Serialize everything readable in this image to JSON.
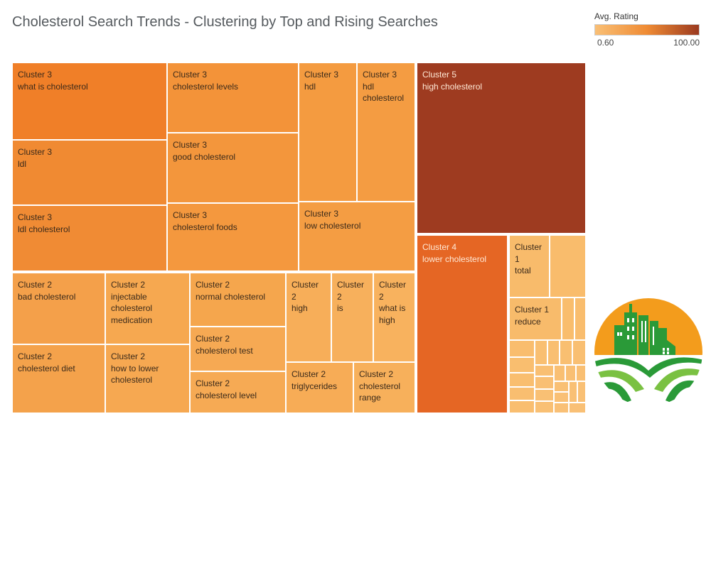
{
  "page": {
    "title": "Cholesterol Search Trends - Clustering by Top and Rising Searches"
  },
  "legend": {
    "title": "Avg. Rating",
    "min_label": "0.60",
    "max_label": "100.00",
    "low_color": "#f9bf75",
    "high_color": "#9b3a20"
  },
  "logo": {
    "icon": "city-and-farm-logo"
  },
  "chart_data": {
    "type": "treemap",
    "title": "Cholesterol Search Trends - Clustering by Top and Rising Searches",
    "color_measure": "Avg. Rating",
    "color_range": [
      0.6,
      100
    ],
    "tiles": [
      {
        "cluster": "Cluster 3",
        "term": "what is cholesterol",
        "color": "#f07f28"
      },
      {
        "cluster": "Cluster 3",
        "term": "ldl",
        "color": "#f08a32"
      },
      {
        "cluster": "Cluster 3",
        "term": "ldl cholesterol",
        "color": "#f08b34"
      },
      {
        "cluster": "Cluster 3",
        "term": "cholesterol levels",
        "color": "#f39339"
      },
      {
        "cluster": "Cluster 3",
        "term": "good cholesterol",
        "color": "#f3963c"
      },
      {
        "cluster": "Cluster 3",
        "term": "cholesterol foods",
        "color": "#f4983e"
      },
      {
        "cluster": "Cluster 3",
        "term": "hdl",
        "color": "#f49b40"
      },
      {
        "cluster": "Cluster 3",
        "term": "hdl cholesterol",
        "color": "#f49c42"
      },
      {
        "cluster": "Cluster 3",
        "term": "low cholesterol",
        "color": "#f49d43"
      },
      {
        "cluster": "Cluster 5",
        "term": "high cholesterol",
        "color": "#9e3b20"
      },
      {
        "cluster": "Cluster 4",
        "term": "lower cholesterol",
        "color": "#e56624"
      },
      {
        "cluster": "Cluster 2",
        "term": "bad cholesterol",
        "color": "#f4a04a"
      },
      {
        "cluster": "Cluster 2",
        "term": "injectable cholesterol medication",
        "color": "#f6a850"
      },
      {
        "cluster": "Cluster 2",
        "term": "cholesterol diet",
        "color": "#f4a24b"
      },
      {
        "cluster": "Cluster 2",
        "term": "how to lower cholesterol",
        "color": "#f6a851"
      },
      {
        "cluster": "Cluster 2",
        "term": "normal cholesterol",
        "color": "#f5a64d"
      },
      {
        "cluster": "Cluster 2",
        "term": "cholesterol test",
        "color": "#f6a953"
      },
      {
        "cluster": "Cluster 2",
        "term": "cholesterol level",
        "color": "#f6aa54"
      },
      {
        "cluster": "Cluster 2",
        "term": "high",
        "color": "#f7ae59"
      },
      {
        "cluster": "Cluster 2",
        "term": "is",
        "color": "#f7b05c"
      },
      {
        "cluster": "Cluster 2",
        "term": "what is high",
        "color": "#f8b25e"
      },
      {
        "cluster": "Cluster 2",
        "term": "triglycerides",
        "color": "#f7ac56"
      },
      {
        "cluster": "Cluster 2",
        "term": "cholesterol range",
        "color": "#f7b05b"
      },
      {
        "cluster": "Cluster 1",
        "term": "total",
        "color": "#f8bb6b"
      },
      {
        "cluster": "Cluster 1",
        "term": "reduce",
        "color": "#f8bb6b"
      },
      {
        "cluster": "Cluster 1",
        "term": "",
        "color": "#f9bc6c"
      },
      {
        "cluster": "Cluster 1",
        "term": "",
        "color": "#f9bd6d"
      },
      {
        "cluster": "Cluster 1",
        "term": "",
        "color": "#f9bd6e"
      },
      {
        "cluster": "Cluster 1",
        "term": "",
        "color": "#f9bd6e"
      },
      {
        "cluster": "Cluster 1",
        "term": "",
        "color": "#f9be6f"
      },
      {
        "cluster": "Cluster 1",
        "term": "",
        "color": "#f9be6f"
      },
      {
        "cluster": "Cluster 1",
        "term": "",
        "color": "#f9be70"
      },
      {
        "cluster": "Cluster 1",
        "term": "",
        "color": "#f9be70"
      },
      {
        "cluster": "Cluster 1",
        "term": "",
        "color": "#f9bf71"
      },
      {
        "cluster": "Cluster 1",
        "term": "",
        "color": "#f9bf71"
      },
      {
        "cluster": "Cluster 1",
        "term": "",
        "color": "#f9bf71"
      },
      {
        "cluster": "Cluster 1",
        "term": "",
        "color": "#f9bf72"
      },
      {
        "cluster": "Cluster 1",
        "term": "",
        "color": "#f9bf72"
      },
      {
        "cluster": "Cluster 1",
        "term": "",
        "color": "#f9bf72"
      },
      {
        "cluster": "Cluster 1",
        "term": "",
        "color": "#f9bf73"
      },
      {
        "cluster": "Cluster 1",
        "term": "",
        "color": "#f9bf73"
      },
      {
        "cluster": "Cluster 1",
        "term": "",
        "color": "#f9bf73"
      },
      {
        "cluster": "Cluster 1",
        "term": "",
        "color": "#f9c074"
      },
      {
        "cluster": "Cluster 1",
        "term": "",
        "color": "#f9c074"
      },
      {
        "cluster": "Cluster 1",
        "term": "",
        "color": "#f9c074"
      },
      {
        "cluster": "Cluster 1",
        "term": "",
        "color": "#f9c075"
      },
      {
        "cluster": "Cluster 1",
        "term": "",
        "color": "#f9c075"
      },
      {
        "cluster": "Cluster 1",
        "term": "",
        "color": "#f9c075"
      },
      {
        "cluster": "Cluster 1",
        "term": "",
        "color": "#f9c076"
      },
      {
        "cluster": "Cluster 1",
        "term": "",
        "color": "#f9c076"
      },
      {
        "cluster": "Cluster 1",
        "term": "",
        "color": "#f9c076"
      },
      {
        "cluster": "Cluster 1",
        "term": "",
        "color": "#f9c077"
      },
      {
        "cluster": "Cluster 1",
        "term": "",
        "color": "#f9c077"
      },
      {
        "cluster": "Cluster 1",
        "term": "",
        "color": "#f9c077"
      },
      {
        "cluster": "Cluster 1",
        "term": "",
        "color": "#f9c077"
      }
    ]
  }
}
